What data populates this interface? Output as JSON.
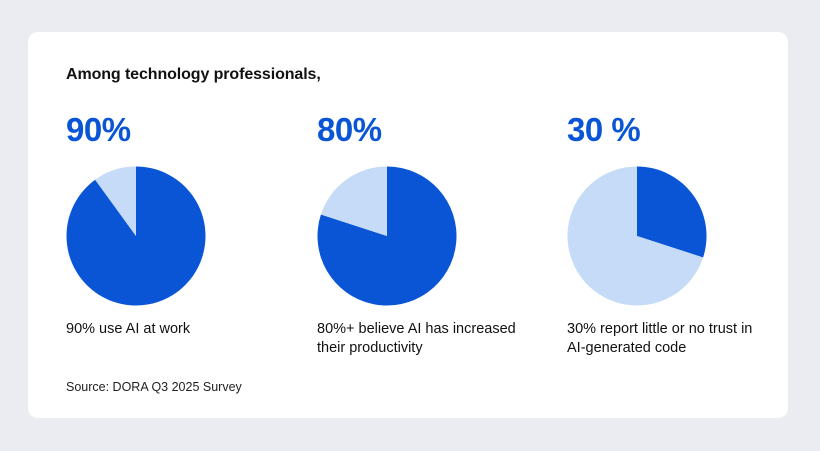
{
  "heading": "Among technology professionals,",
  "colors": {
    "accent": "#0a55d6",
    "light": "#c6dbf7",
    "background": "#eaecf1",
    "card": "#ffffff"
  },
  "chart_data": [
    {
      "type": "pie",
      "big_label": "90%",
      "values": [
        90,
        10
      ],
      "caption": "90% use AI at work"
    },
    {
      "type": "pie",
      "big_label": "80%",
      "values": [
        80,
        20
      ],
      "caption": "80%+ believe AI has increased their productivity"
    },
    {
      "type": "pie",
      "big_label": "30 %",
      "values": [
        30,
        70
      ],
      "caption": "30% report little or no trust in AI-generated code"
    }
  ],
  "source": "Source: DORA Q3 2025 Survey"
}
